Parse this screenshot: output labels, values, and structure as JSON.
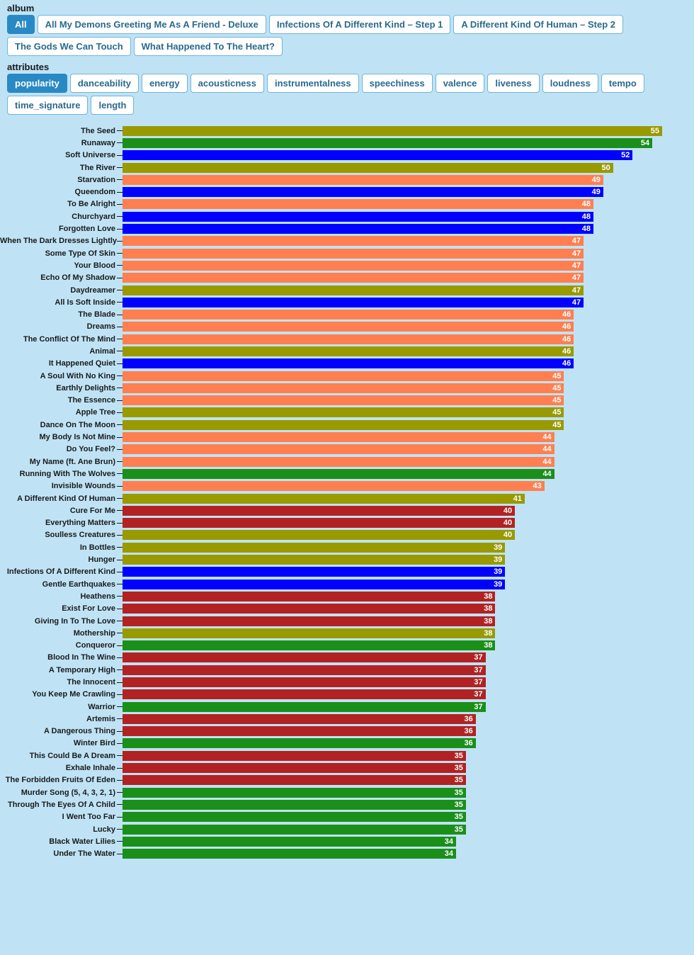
{
  "sections": {
    "album": {
      "label": "album",
      "items": [
        {
          "label": "All",
          "active": true
        },
        {
          "label": "All My Demons Greeting Me As A Friend - Deluxe",
          "active": false
        },
        {
          "label": "Infections Of A Different Kind – Step 1",
          "active": false
        },
        {
          "label": "A Different Kind Of Human – Step 2",
          "active": false
        },
        {
          "label": "The Gods We Can Touch",
          "active": false
        },
        {
          "label": "What Happened To The Heart?",
          "active": false
        }
      ]
    },
    "attributes": {
      "label": "attributes",
      "items": [
        {
          "label": "popularity",
          "active": true
        },
        {
          "label": "danceability",
          "active": false
        },
        {
          "label": "energy",
          "active": false
        },
        {
          "label": "acousticness",
          "active": false
        },
        {
          "label": "instrumentalness",
          "active": false
        },
        {
          "label": "speechiness",
          "active": false
        },
        {
          "label": "valence",
          "active": false
        },
        {
          "label": "liveness",
          "active": false
        },
        {
          "label": "loudness",
          "active": false
        },
        {
          "label": "tempo",
          "active": false
        },
        {
          "label": "time_signature",
          "active": false
        },
        {
          "label": "length",
          "active": false
        }
      ]
    }
  },
  "chart": {
    "type": "bar-horizontal",
    "max_value": 55,
    "bar_area_width": 762,
    "colors": {
      "olive": "#999900",
      "green": "#1a8f1a",
      "blue": "#0000ff",
      "coral": "#ff7f50",
      "crimson": "#b22222"
    },
    "background_color": "#bfe3f5",
    "label_fontsize": 11,
    "value_fontsize": 11,
    "tracks": [
      {
        "name": "The Seed",
        "value": 55,
        "color": "olive"
      },
      {
        "name": "Runaway",
        "value": 54,
        "color": "green"
      },
      {
        "name": "Soft Universe",
        "value": 52,
        "color": "blue"
      },
      {
        "name": "The River",
        "value": 50,
        "color": "olive"
      },
      {
        "name": "Starvation",
        "value": 49,
        "color": "coral"
      },
      {
        "name": "Queendom",
        "value": 49,
        "color": "blue"
      },
      {
        "name": "To Be Alright",
        "value": 48,
        "color": "coral"
      },
      {
        "name": "Churchyard",
        "value": 48,
        "color": "blue"
      },
      {
        "name": "Forgotten Love",
        "value": 48,
        "color": "blue"
      },
      {
        "name": "When The Dark Dresses Lightly",
        "value": 47,
        "color": "coral"
      },
      {
        "name": "Some Type Of Skin",
        "value": 47,
        "color": "coral"
      },
      {
        "name": "Your Blood",
        "value": 47,
        "color": "coral"
      },
      {
        "name": "Echo Of My Shadow",
        "value": 47,
        "color": "coral"
      },
      {
        "name": "Daydreamer",
        "value": 47,
        "color": "olive"
      },
      {
        "name": "All Is Soft Inside",
        "value": 47,
        "color": "blue"
      },
      {
        "name": "The Blade",
        "value": 46,
        "color": "coral"
      },
      {
        "name": "Dreams",
        "value": 46,
        "color": "coral"
      },
      {
        "name": "The Conflict Of The Mind",
        "value": 46,
        "color": "coral"
      },
      {
        "name": "Animal",
        "value": 46,
        "color": "olive"
      },
      {
        "name": "It Happened Quiet",
        "value": 46,
        "color": "blue"
      },
      {
        "name": "A Soul With No King",
        "value": 45,
        "color": "coral"
      },
      {
        "name": "Earthly Delights",
        "value": 45,
        "color": "coral"
      },
      {
        "name": "The Essence",
        "value": 45,
        "color": "coral"
      },
      {
        "name": "Apple Tree",
        "value": 45,
        "color": "olive"
      },
      {
        "name": "Dance On The Moon",
        "value": 45,
        "color": "olive"
      },
      {
        "name": "My Body Is Not Mine",
        "value": 44,
        "color": "coral"
      },
      {
        "name": "Do You Feel?",
        "value": 44,
        "color": "coral"
      },
      {
        "name": "My Name (ft. Ane Brun)",
        "value": 44,
        "color": "coral"
      },
      {
        "name": "Running With The Wolves",
        "value": 44,
        "color": "green"
      },
      {
        "name": "Invisible Wounds",
        "value": 43,
        "color": "coral"
      },
      {
        "name": "A Different Kind Of Human",
        "value": 41,
        "color": "olive"
      },
      {
        "name": "Cure For Me",
        "value": 40,
        "color": "crimson"
      },
      {
        "name": "Everything Matters",
        "value": 40,
        "color": "crimson"
      },
      {
        "name": "Soulless Creatures",
        "value": 40,
        "color": "olive"
      },
      {
        "name": "In Bottles",
        "value": 39,
        "color": "olive"
      },
      {
        "name": "Hunger",
        "value": 39,
        "color": "olive"
      },
      {
        "name": "Infections Of A Different Kind",
        "value": 39,
        "color": "blue"
      },
      {
        "name": "Gentle Earthquakes",
        "value": 39,
        "color": "blue"
      },
      {
        "name": "Heathens",
        "value": 38,
        "color": "crimson"
      },
      {
        "name": "Exist For Love",
        "value": 38,
        "color": "crimson"
      },
      {
        "name": "Giving In To The Love",
        "value": 38,
        "color": "crimson"
      },
      {
        "name": "Mothership",
        "value": 38,
        "color": "olive"
      },
      {
        "name": "Conqueror",
        "value": 38,
        "color": "green"
      },
      {
        "name": "Blood In The Wine",
        "value": 37,
        "color": "crimson"
      },
      {
        "name": "A Temporary High",
        "value": 37,
        "color": "crimson"
      },
      {
        "name": "The Innocent",
        "value": 37,
        "color": "crimson"
      },
      {
        "name": "You Keep Me Crawling",
        "value": 37,
        "color": "crimson"
      },
      {
        "name": "Warrior",
        "value": 37,
        "color": "green"
      },
      {
        "name": "Artemis",
        "value": 36,
        "color": "crimson"
      },
      {
        "name": "A Dangerous Thing",
        "value": 36,
        "color": "crimson"
      },
      {
        "name": "Winter Bird",
        "value": 36,
        "color": "green"
      },
      {
        "name": "This Could Be A Dream",
        "value": 35,
        "color": "crimson"
      },
      {
        "name": "Exhale Inhale",
        "value": 35,
        "color": "crimson"
      },
      {
        "name": "The Forbidden Fruits Of Eden",
        "value": 35,
        "color": "crimson"
      },
      {
        "name": "Murder Song (5, 4, 3, 2, 1)",
        "value": 35,
        "color": "green"
      },
      {
        "name": "Through The Eyes Of A Child",
        "value": 35,
        "color": "green"
      },
      {
        "name": "I Went Too Far",
        "value": 35,
        "color": "green"
      },
      {
        "name": "Lucky",
        "value": 35,
        "color": "green"
      },
      {
        "name": "Black Water Lilies",
        "value": 34,
        "color": "green"
      },
      {
        "name": "Under The Water",
        "value": 34,
        "color": "green"
      }
    ]
  }
}
